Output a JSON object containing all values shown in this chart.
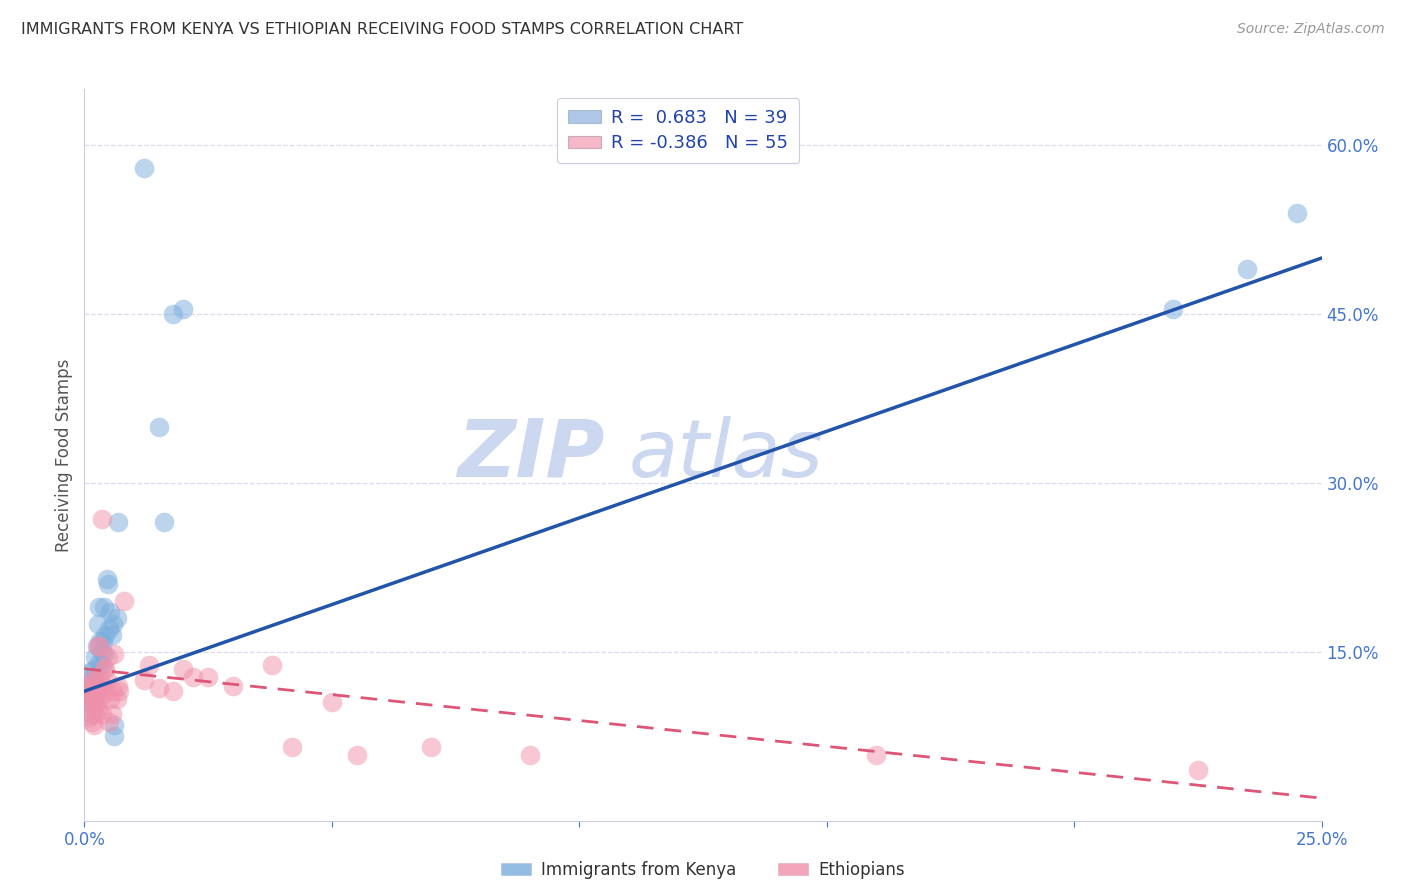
{
  "title": "IMMIGRANTS FROM KENYA VS ETHIOPIAN RECEIVING FOOD STAMPS CORRELATION CHART",
  "source": "Source: ZipAtlas.com",
  "ylabel": "Receiving Food Stamps",
  "xlim": [
    0.0,
    0.25
  ],
  "ylim": [
    0.0,
    0.65
  ],
  "xtick_positions": [
    0.0,
    0.05,
    0.1,
    0.15,
    0.2,
    0.25
  ],
  "xtick_labels": [
    "0.0%",
    "",
    "",
    "",
    "",
    "25.0%"
  ],
  "ytick_positions": [
    0.15,
    0.3,
    0.45,
    0.6
  ],
  "ytick_labels": [
    "15.0%",
    "30.0%",
    "45.0%",
    "60.0%"
  ],
  "legend_entries": [
    {
      "label": "R =  0.683   N = 39",
      "facecolor": "#aec6e8"
    },
    {
      "label": "R = -0.386   N = 55",
      "facecolor": "#f4b8c8"
    }
  ],
  "kenya_scatter_color": "#7aaddd",
  "ethiopia_scatter_color": "#f090aa",
  "kenya_line_color": "#2255aa",
  "ethiopia_line_color": "#dd5577",
  "watermark_color": "#ccd8f0",
  "background_color": "#ffffff",
  "grid_color": "#d8ddf0",
  "legend_label1": "Immigrants from Kenya",
  "legend_label2": "Ethiopians",
  "kenya_points": [
    [
      0.0008,
      0.118
    ],
    [
      0.001,
      0.105
    ],
    [
      0.0012,
      0.132
    ],
    [
      0.0015,
      0.095
    ],
    [
      0.0015,
      0.115
    ],
    [
      0.0018,
      0.128
    ],
    [
      0.002,
      0.108
    ],
    [
      0.002,
      0.135
    ],
    [
      0.0022,
      0.145
    ],
    [
      0.0025,
      0.155
    ],
    [
      0.0025,
      0.12
    ],
    [
      0.0028,
      0.175
    ],
    [
      0.003,
      0.19
    ],
    [
      0.003,
      0.14
    ],
    [
      0.0032,
      0.16
    ],
    [
      0.0035,
      0.138
    ],
    [
      0.0035,
      0.15
    ],
    [
      0.0038,
      0.16
    ],
    [
      0.004,
      0.148
    ],
    [
      0.004,
      0.19
    ],
    [
      0.0042,
      0.165
    ],
    [
      0.0045,
      0.215
    ],
    [
      0.0048,
      0.21
    ],
    [
      0.005,
      0.17
    ],
    [
      0.0052,
      0.185
    ],
    [
      0.0055,
      0.165
    ],
    [
      0.0058,
      0.175
    ],
    [
      0.006,
      0.085
    ],
    [
      0.006,
      0.075
    ],
    [
      0.0065,
      0.18
    ],
    [
      0.0068,
      0.265
    ],
    [
      0.012,
      0.58
    ],
    [
      0.015,
      0.35
    ],
    [
      0.016,
      0.265
    ],
    [
      0.018,
      0.45
    ],
    [
      0.02,
      0.455
    ],
    [
      0.22,
      0.455
    ],
    [
      0.235,
      0.49
    ],
    [
      0.245,
      0.54
    ]
  ],
  "ethiopia_points": [
    [
      0.0005,
      0.118
    ],
    [
      0.0008,
      0.11
    ],
    [
      0.001,
      0.12
    ],
    [
      0.001,
      0.092
    ],
    [
      0.0012,
      0.105
    ],
    [
      0.0012,
      0.115
    ],
    [
      0.0015,
      0.125
    ],
    [
      0.0015,
      0.088
    ],
    [
      0.0018,
      0.098
    ],
    [
      0.0018,
      0.108
    ],
    [
      0.002,
      0.118
    ],
    [
      0.002,
      0.085
    ],
    [
      0.0022,
      0.095
    ],
    [
      0.0022,
      0.125
    ],
    [
      0.0025,
      0.105
    ],
    [
      0.0025,
      0.115
    ],
    [
      0.0028,
      0.155
    ],
    [
      0.0028,
      0.1
    ],
    [
      0.003,
      0.118
    ],
    [
      0.003,
      0.155
    ],
    [
      0.0032,
      0.108
    ],
    [
      0.0032,
      0.125
    ],
    [
      0.0035,
      0.268
    ],
    [
      0.0035,
      0.095
    ],
    [
      0.0038,
      0.12
    ],
    [
      0.004,
      0.135
    ],
    [
      0.004,
      0.115
    ],
    [
      0.0042,
      0.135
    ],
    [
      0.0045,
      0.125
    ],
    [
      0.0048,
      0.145
    ],
    [
      0.005,
      0.088
    ],
    [
      0.0052,
      0.108
    ],
    [
      0.0055,
      0.095
    ],
    [
      0.0058,
      0.115
    ],
    [
      0.006,
      0.148
    ],
    [
      0.0065,
      0.108
    ],
    [
      0.0068,
      0.12
    ],
    [
      0.007,
      0.115
    ],
    [
      0.008,
      0.195
    ],
    [
      0.012,
      0.125
    ],
    [
      0.013,
      0.138
    ],
    [
      0.015,
      0.118
    ],
    [
      0.018,
      0.115
    ],
    [
      0.02,
      0.135
    ],
    [
      0.022,
      0.128
    ],
    [
      0.025,
      0.128
    ],
    [
      0.03,
      0.12
    ],
    [
      0.038,
      0.138
    ],
    [
      0.042,
      0.065
    ],
    [
      0.05,
      0.105
    ],
    [
      0.055,
      0.058
    ],
    [
      0.07,
      0.065
    ],
    [
      0.09,
      0.058
    ],
    [
      0.16,
      0.058
    ],
    [
      0.225,
      0.045
    ]
  ],
  "kenya_line_x": [
    0.0,
    0.25
  ],
  "kenya_line_y": [
    0.115,
    0.5
  ],
  "ethiopia_line_x": [
    0.0,
    0.25
  ],
  "ethiopia_line_y": [
    0.135,
    0.02
  ]
}
